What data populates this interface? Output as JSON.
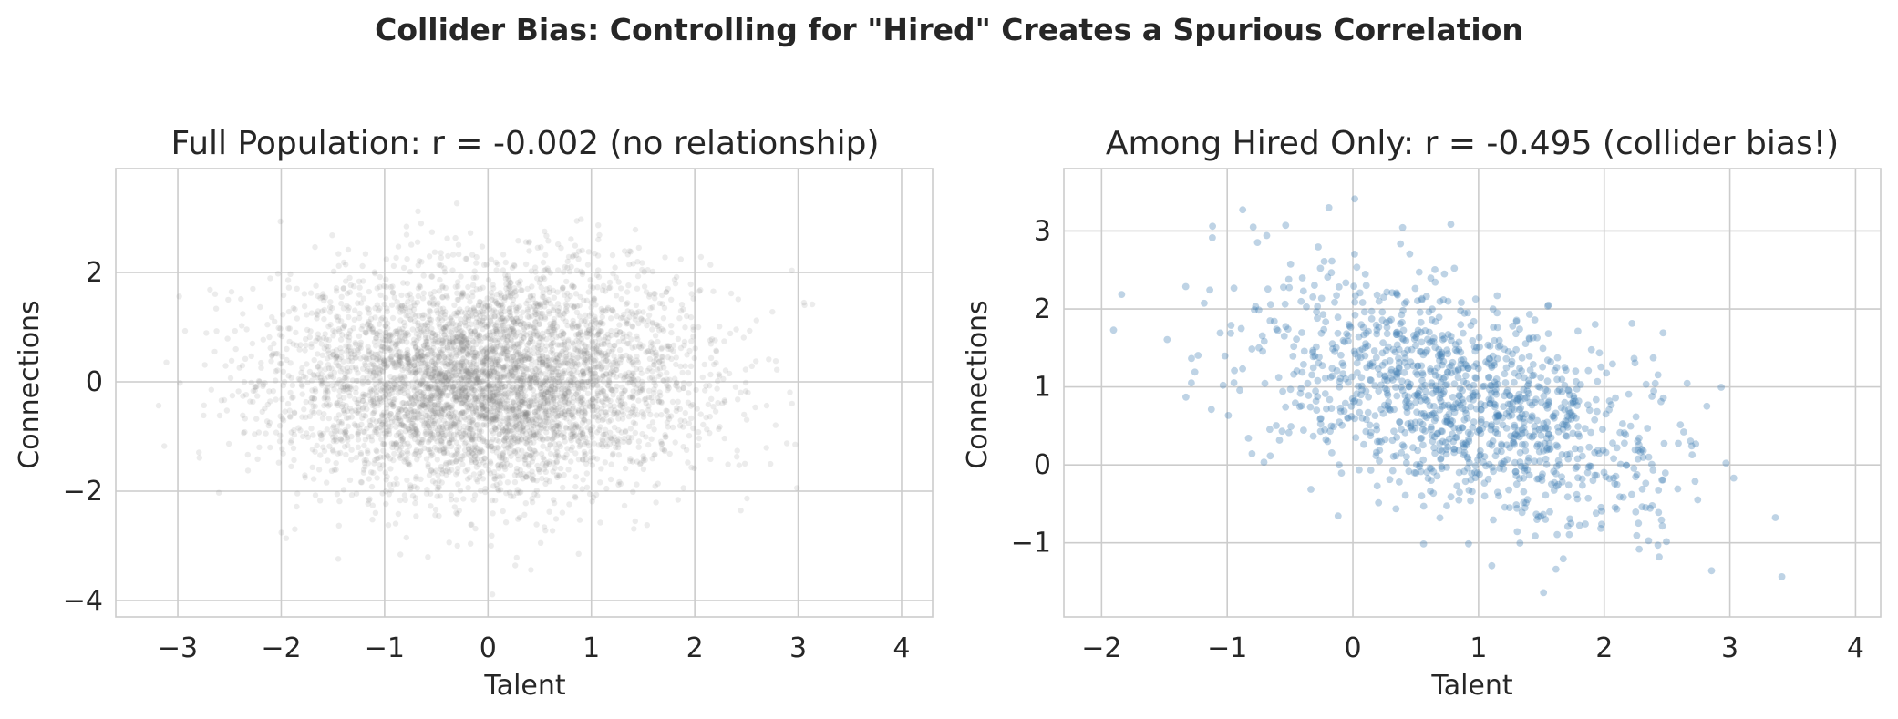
{
  "figure": {
    "suptitle": "Collider Bias: Controlling for \"Hired\" Creates a Spurious Correlation"
  },
  "chart_data": [
    {
      "type": "scatter",
      "title": "Full Population: r = -0.002 (no relationship)",
      "xlabel": "Talent",
      "ylabel": "Connections",
      "xlim": [
        -3.6,
        4.3
      ],
      "ylim": [
        -4.3,
        3.9
      ],
      "xticks": [
        -3,
        -2,
        -1,
        0,
        1,
        2,
        3,
        4
      ],
      "yticks": [
        -4,
        -2,
        0,
        2
      ],
      "grid": true,
      "legend": "none",
      "marker_color": "#808080",
      "marker_opacity": 0.15,
      "distribution": {
        "n": 5000,
        "x_mean": 0,
        "x_sd": 1,
        "y_mean": 0,
        "y_sd": 1,
        "r": -0.002
      }
    },
    {
      "type": "scatter",
      "title": "Among Hired Only: r = -0.495 (collider bias!)",
      "xlabel": "Talent",
      "ylabel": "Connections",
      "xlim": [
        -2.3,
        4.2
      ],
      "ylim": [
        -1.95,
        3.8
      ],
      "xticks": [
        -2,
        -1,
        0,
        1,
        2,
        3,
        4
      ],
      "yticks": [
        -1,
        0,
        1,
        2,
        3
      ],
      "grid": true,
      "legend": "none",
      "marker_color": "#4682b4",
      "marker_opacity": 0.35,
      "distribution": {
        "n": 1250,
        "x_mean": 0.85,
        "x_sd": 0.8,
        "y_mean": 0.8,
        "y_sd": 0.8,
        "r": -0.495
      }
    }
  ]
}
